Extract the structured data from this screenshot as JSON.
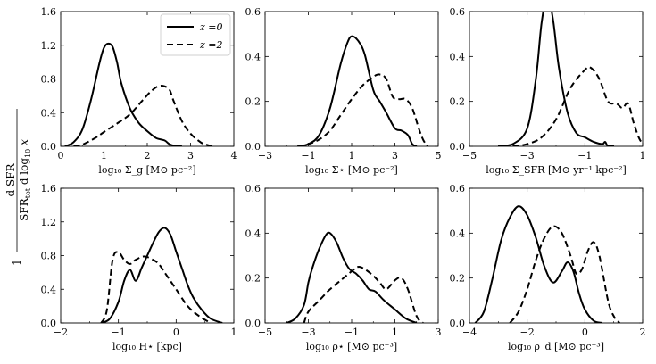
{
  "figure": {
    "ylabel_fraction_prefix": "1",
    "ylabel_top": "d SFR",
    "ylabel_bottom": "SFR",
    "ylabel_bottom_sub": "tot",
    "ylabel_bottom_tail": " d log",
    "ylabel_bottom_tail_sub": "10",
    "ylabel_bottom_var": " x"
  },
  "legend": {
    "entries": [
      {
        "label": "z =0",
        "style": "solid"
      },
      {
        "label": "z =2",
        "style": "dashed"
      }
    ]
  },
  "chart_data": [
    {
      "type": "line",
      "xlabel": "log₁₀ Σ_g [M⊙ pc⁻²]",
      "xlim": [
        0,
        4
      ],
      "ylim": [
        0,
        1.6
      ],
      "xticks": [
        "0",
        "1",
        "2",
        "3",
        "4"
      ],
      "xtick_values": [
        0,
        1,
        2,
        3,
        4
      ],
      "yticks": [
        "0.0",
        "0.4",
        "0.8",
        "1.2",
        "1.6"
      ],
      "ytick_values": [
        0,
        0.4,
        0.8,
        1.2,
        1.6
      ],
      "series": [
        {
          "name": "z =0",
          "style": "solid",
          "x": [
            0.1,
            0.3,
            0.5,
            0.7,
            0.9,
            1.0,
            1.1,
            1.2,
            1.3,
            1.4,
            1.6,
            1.8,
            2.0,
            2.2,
            2.4,
            2.5,
            2.6,
            2.8
          ],
          "y": [
            0.0,
            0.05,
            0.2,
            0.55,
            1.0,
            1.17,
            1.22,
            1.18,
            1.0,
            0.75,
            0.45,
            0.28,
            0.18,
            0.1,
            0.07,
            0.03,
            0.01,
            0.0
          ]
        },
        {
          "name": "z =2",
          "style": "dashed",
          "x": [
            0.3,
            0.5,
            0.8,
            1.0,
            1.3,
            1.6,
            1.9,
            2.1,
            2.3,
            2.5,
            2.6,
            2.8,
            3.0,
            3.2,
            3.3,
            3.5
          ],
          "y": [
            0.0,
            0.02,
            0.1,
            0.17,
            0.27,
            0.38,
            0.55,
            0.66,
            0.72,
            0.68,
            0.55,
            0.3,
            0.15,
            0.06,
            0.03,
            0.0
          ]
        }
      ]
    },
    {
      "type": "line",
      "xlabel": "log₁₀ Σ⋆ [M⊙ pc⁻²]",
      "xlim": [
        -3,
        5
      ],
      "ylim": [
        0,
        0.6
      ],
      "xticks": [
        "−3",
        "−1",
        "1",
        "3",
        "5"
      ],
      "xtick_values": [
        -3,
        -1,
        1,
        3,
        5
      ],
      "yticks": [
        "0.0",
        "0.2",
        "0.4",
        "0.6"
      ],
      "ytick_values": [
        0,
        0.2,
        0.4,
        0.6
      ],
      "series": [
        {
          "name": "z =0",
          "style": "solid",
          "x": [
            -1.5,
            -1.0,
            -0.5,
            0.0,
            0.5,
            0.8,
            1.0,
            1.3,
            1.6,
            2.0,
            2.3,
            2.6,
            3.0,
            3.3,
            3.6,
            3.8,
            4.0
          ],
          "y": [
            0.0,
            0.01,
            0.05,
            0.17,
            0.37,
            0.46,
            0.49,
            0.47,
            0.41,
            0.25,
            0.2,
            0.15,
            0.08,
            0.07,
            0.05,
            0.01,
            0.0
          ]
        },
        {
          "name": "z =2",
          "style": "dashed",
          "x": [
            -1.5,
            -1.0,
            -0.5,
            0.0,
            0.5,
            1.0,
            1.5,
            2.0,
            2.3,
            2.6,
            2.9,
            3.2,
            3.5,
            3.8,
            4.1,
            4.3,
            4.5
          ],
          "y": [
            0.0,
            0.01,
            0.03,
            0.07,
            0.14,
            0.21,
            0.27,
            0.31,
            0.32,
            0.3,
            0.22,
            0.21,
            0.21,
            0.17,
            0.08,
            0.03,
            0.0
          ]
        }
      ]
    },
    {
      "type": "line",
      "xlabel": "log₁₀ Σ_SFR [M⊙ yr⁻¹ kpc⁻²]",
      "xlim": [
        -5,
        1
      ],
      "ylim": [
        0,
        0.6
      ],
      "xticks": [
        "−5",
        "−3",
        "−1",
        "1"
      ],
      "xtick_values": [
        -5,
        -3,
        -1,
        1
      ],
      "yticks": [
        "0.0",
        "0.2",
        "0.4",
        "0.6"
      ],
      "ytick_values": [
        0,
        0.2,
        0.4,
        0.6
      ],
      "series": [
        {
          "name": "z =0",
          "style": "solid",
          "x": [
            -4.0,
            -3.5,
            -3.0,
            -2.7,
            -2.5,
            -2.3,
            -2.1,
            -1.9,
            -1.6,
            -1.3,
            -1.0,
            -0.7,
            -0.4,
            -0.3,
            -0.2,
            0.0
          ],
          "y": [
            0.0,
            0.01,
            0.08,
            0.3,
            0.55,
            0.67,
            0.56,
            0.35,
            0.15,
            0.06,
            0.04,
            0.02,
            0.01,
            0.02,
            0.0,
            0.0
          ]
        },
        {
          "name": "z =2",
          "style": "dashed",
          "x": [
            -3.5,
            -3.0,
            -2.5,
            -2.0,
            -1.5,
            -1.0,
            -0.8,
            -0.5,
            -0.2,
            0.1,
            0.3,
            0.5,
            0.7,
            0.9,
            1.1
          ],
          "y": [
            0.0,
            0.01,
            0.04,
            0.12,
            0.26,
            0.34,
            0.35,
            0.3,
            0.2,
            0.19,
            0.17,
            0.19,
            0.1,
            0.03,
            0.0
          ]
        }
      ]
    },
    {
      "type": "line",
      "xlabel": "log₁₀ H⋆ [kpc]",
      "xlim": [
        -2,
        1
      ],
      "ylim": [
        0,
        1.6
      ],
      "xticks": [
        "−2",
        "−1",
        "0",
        "1"
      ],
      "xtick_values": [
        -2,
        -1,
        0,
        1
      ],
      "yticks": [
        "0.0",
        "0.4",
        "0.8",
        "1.2",
        "1.6"
      ],
      "ytick_values": [
        0,
        0.4,
        0.8,
        1.2,
        1.6
      ],
      "series": [
        {
          "name": "z =0",
          "style": "solid",
          "x": [
            -1.3,
            -1.15,
            -1.0,
            -0.9,
            -0.8,
            -0.7,
            -0.6,
            -0.5,
            -0.4,
            -0.3,
            -0.2,
            -0.1,
            0.0,
            0.1,
            0.2,
            0.3,
            0.45,
            0.6,
            0.8
          ],
          "y": [
            0.0,
            0.05,
            0.25,
            0.5,
            0.63,
            0.5,
            0.65,
            0.8,
            0.95,
            1.08,
            1.13,
            1.05,
            0.85,
            0.65,
            0.45,
            0.3,
            0.15,
            0.05,
            0.0
          ]
        },
        {
          "name": "z =2",
          "style": "dashed",
          "x": [
            -1.3,
            -1.2,
            -1.1,
            -1.0,
            -0.9,
            -0.8,
            -0.7,
            -0.55,
            -0.4,
            -0.3,
            -0.2,
            -0.1,
            0.0,
            0.2,
            0.4,
            0.6
          ],
          "y": [
            0.0,
            0.15,
            0.75,
            0.84,
            0.75,
            0.7,
            0.75,
            0.79,
            0.75,
            0.7,
            0.6,
            0.5,
            0.4,
            0.2,
            0.08,
            0.0
          ]
        }
      ]
    },
    {
      "type": "line",
      "xlabel": "log₁₀ ρ⋆ [M⊙ pc⁻³]",
      "xlim": [
        -5,
        3
      ],
      "ylim": [
        0,
        0.6
      ],
      "xticks": [
        "−5",
        "−3",
        "−1",
        "1",
        "3"
      ],
      "xtick_values": [
        -5,
        -3,
        -1,
        1,
        3
      ],
      "yticks": [
        "0.0",
        "0.2",
        "0.4",
        "0.6"
      ],
      "ytick_values": [
        0,
        0.2,
        0.4,
        0.6
      ],
      "series": [
        {
          "name": "z =0",
          "style": "solid",
          "x": [
            -4.0,
            -3.6,
            -3.2,
            -3.0,
            -2.8,
            -2.5,
            -2.2,
            -2.0,
            -1.7,
            -1.4,
            -1.1,
            -0.8,
            -0.5,
            -0.2,
            0.1,
            0.5,
            1.0,
            1.5,
            2.0
          ],
          "y": [
            0.0,
            0.02,
            0.08,
            0.18,
            0.25,
            0.33,
            0.39,
            0.4,
            0.36,
            0.29,
            0.24,
            0.22,
            0.19,
            0.15,
            0.14,
            0.1,
            0.06,
            0.02,
            0.0
          ]
        },
        {
          "name": "z =2",
          "style": "dashed",
          "x": [
            -3.2,
            -3.0,
            -2.5,
            -2.0,
            -1.5,
            -1.0,
            -0.7,
            -0.4,
            0.0,
            0.3,
            0.6,
            1.0,
            1.3,
            1.6,
            2.0,
            2.3
          ],
          "y": [
            0.0,
            0.05,
            0.1,
            0.15,
            0.19,
            0.23,
            0.25,
            0.24,
            0.21,
            0.18,
            0.15,
            0.19,
            0.2,
            0.15,
            0.03,
            0.0
          ]
        }
      ]
    },
    {
      "type": "line",
      "xlabel": "log₁₀ ρ_d [M⊙ pc⁻³]",
      "xlim": [
        -4,
        2
      ],
      "ylim": [
        0,
        0.6
      ],
      "xticks": [
        "−4",
        "−2",
        "0",
        "2"
      ],
      "xtick_values": [
        -4,
        -2,
        0,
        2
      ],
      "yticks": [
        "0.0",
        "0.2",
        "0.4",
        "0.6"
      ],
      "ytick_values": [
        0,
        0.2,
        0.4,
        0.6
      ],
      "series": [
        {
          "name": "z =0",
          "style": "solid",
          "x": [
            -3.8,
            -3.5,
            -3.2,
            -2.9,
            -2.6,
            -2.3,
            -2.0,
            -1.7,
            -1.4,
            -1.1,
            -0.8,
            -0.6,
            -0.4,
            -0.2,
            0.0,
            0.3,
            0.6
          ],
          "y": [
            0.0,
            0.05,
            0.2,
            0.37,
            0.47,
            0.52,
            0.48,
            0.38,
            0.25,
            0.18,
            0.23,
            0.27,
            0.23,
            0.13,
            0.06,
            0.01,
            0.0
          ]
        },
        {
          "name": "z =2",
          "style": "dashed",
          "x": [
            -2.6,
            -2.3,
            -2.0,
            -1.7,
            -1.4,
            -1.1,
            -0.8,
            -0.5,
            -0.3,
            -0.1,
            0.1,
            0.3,
            0.5,
            0.8,
            1.0,
            1.2
          ],
          "y": [
            0.0,
            0.05,
            0.15,
            0.28,
            0.38,
            0.43,
            0.4,
            0.3,
            0.22,
            0.24,
            0.32,
            0.36,
            0.3,
            0.1,
            0.03,
            0.0
          ]
        }
      ]
    }
  ]
}
